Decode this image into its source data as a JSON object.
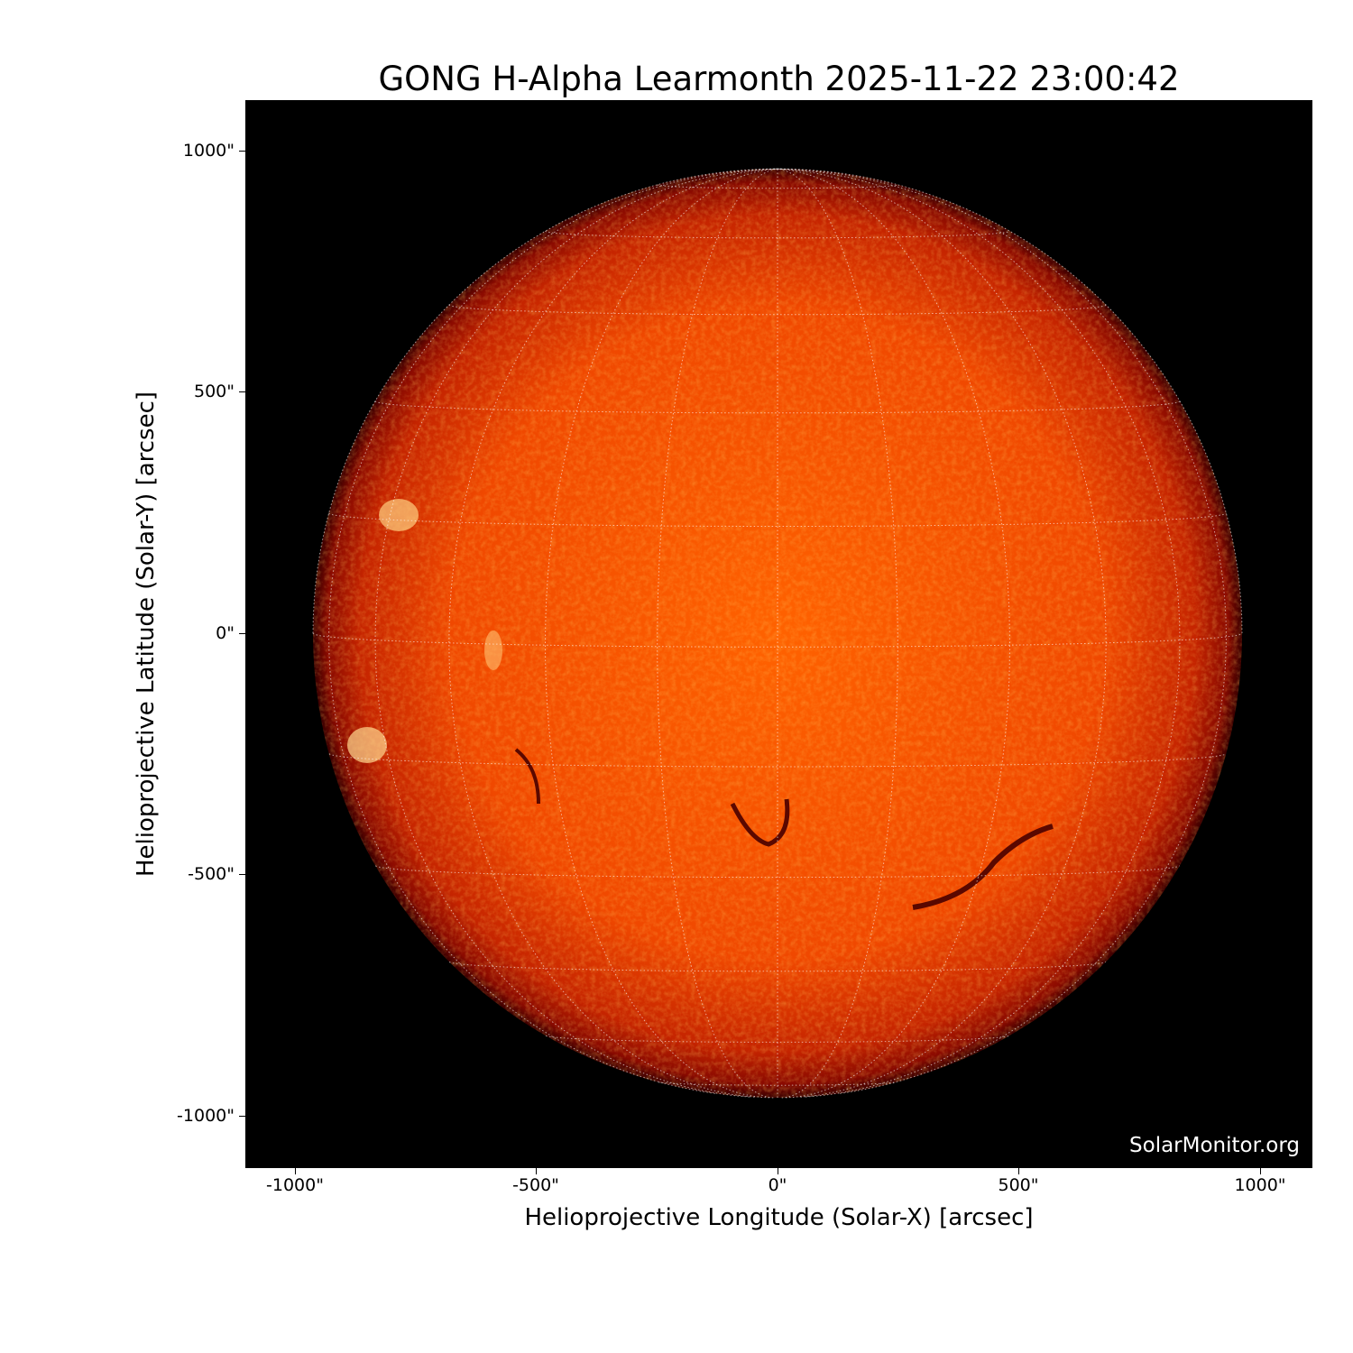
{
  "title": "GONG H-Alpha Learmonth 2025-11-22 23:00:42",
  "xlabel": "Helioprojective Longitude (Solar-X) [arcsec]",
  "ylabel": "Helioprojective Latitude (Solar-Y) [arcsec]",
  "xticks": [
    "-1000\"",
    "-500\"",
    "0\"",
    "500\"",
    "1000\""
  ],
  "yticks": [
    "1000\"",
    "500\"",
    "0\"",
    "-500\"",
    "-1000\""
  ],
  "watermark": "SolarMonitor.org",
  "colors": {
    "disk_center": "#ff6a00",
    "disk_limb": "#8a0a00",
    "background": "#000000",
    "grid": "#ffffff"
  }
}
